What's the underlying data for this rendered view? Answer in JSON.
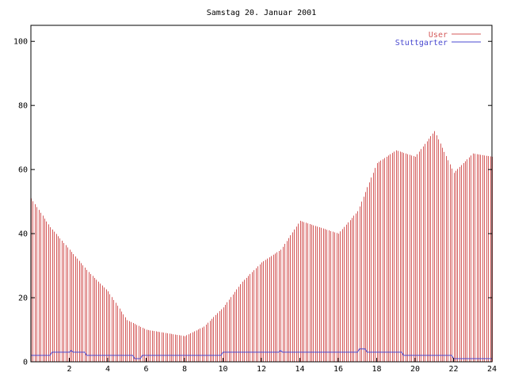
{
  "chart_data": {
    "type": "bar",
    "title": "Samstag 20. Januar 2001",
    "xlabel": "",
    "ylabel": "",
    "xlim": [
      0,
      24
    ],
    "ylim": [
      0,
      105
    ],
    "xticks": [
      2,
      4,
      6,
      8,
      10,
      12,
      14,
      16,
      18,
      20,
      22,
      24
    ],
    "yticks": [
      0,
      20,
      40,
      60,
      80,
      100
    ],
    "grid": false,
    "legend_position": "top-right",
    "x_step_hours": 0.1,
    "series": [
      {
        "name": "User",
        "type": "impulses",
        "color": "#d45a5a",
        "points_hourly": [
          [
            0,
            51
          ],
          [
            1,
            42
          ],
          [
            2,
            35
          ],
          [
            3,
            28
          ],
          [
            4,
            22
          ],
          [
            5,
            13
          ],
          [
            6,
            10
          ],
          [
            7,
            9
          ],
          [
            8,
            8
          ],
          [
            9,
            11
          ],
          [
            10,
            17
          ],
          [
            11,
            25
          ],
          [
            12,
            31
          ],
          [
            13,
            35
          ],
          [
            14,
            44
          ],
          [
            15,
            42
          ],
          [
            16,
            40
          ],
          [
            17,
            47
          ],
          [
            18,
            62
          ],
          [
            19,
            66
          ],
          [
            20,
            64
          ],
          [
            21,
            72
          ],
          [
            22,
            59
          ],
          [
            23,
            65
          ],
          [
            24,
            64
          ]
        ]
      },
      {
        "name": "Stuttgarter",
        "type": "line",
        "color": "#4a4ad0",
        "points": [
          [
            0,
            2
          ],
          [
            1,
            2
          ],
          [
            1.1,
            3
          ],
          [
            2.0,
            3
          ],
          [
            2.1,
            3.5
          ],
          [
            2.2,
            3
          ],
          [
            2.8,
            3
          ],
          [
            2.9,
            2
          ],
          [
            5.3,
            2
          ],
          [
            5.4,
            1
          ],
          [
            5.7,
            1
          ],
          [
            5.8,
            2
          ],
          [
            9.9,
            2
          ],
          [
            10.0,
            3
          ],
          [
            12.9,
            3
          ],
          [
            13.0,
            3.5
          ],
          [
            13.1,
            3
          ],
          [
            17.0,
            3
          ],
          [
            17.1,
            4
          ],
          [
            17.4,
            4
          ],
          [
            17.5,
            3
          ],
          [
            19.3,
            3
          ],
          [
            19.4,
            2
          ],
          [
            21.9,
            2
          ],
          [
            22.0,
            1
          ],
          [
            24,
            1
          ]
        ]
      }
    ]
  }
}
